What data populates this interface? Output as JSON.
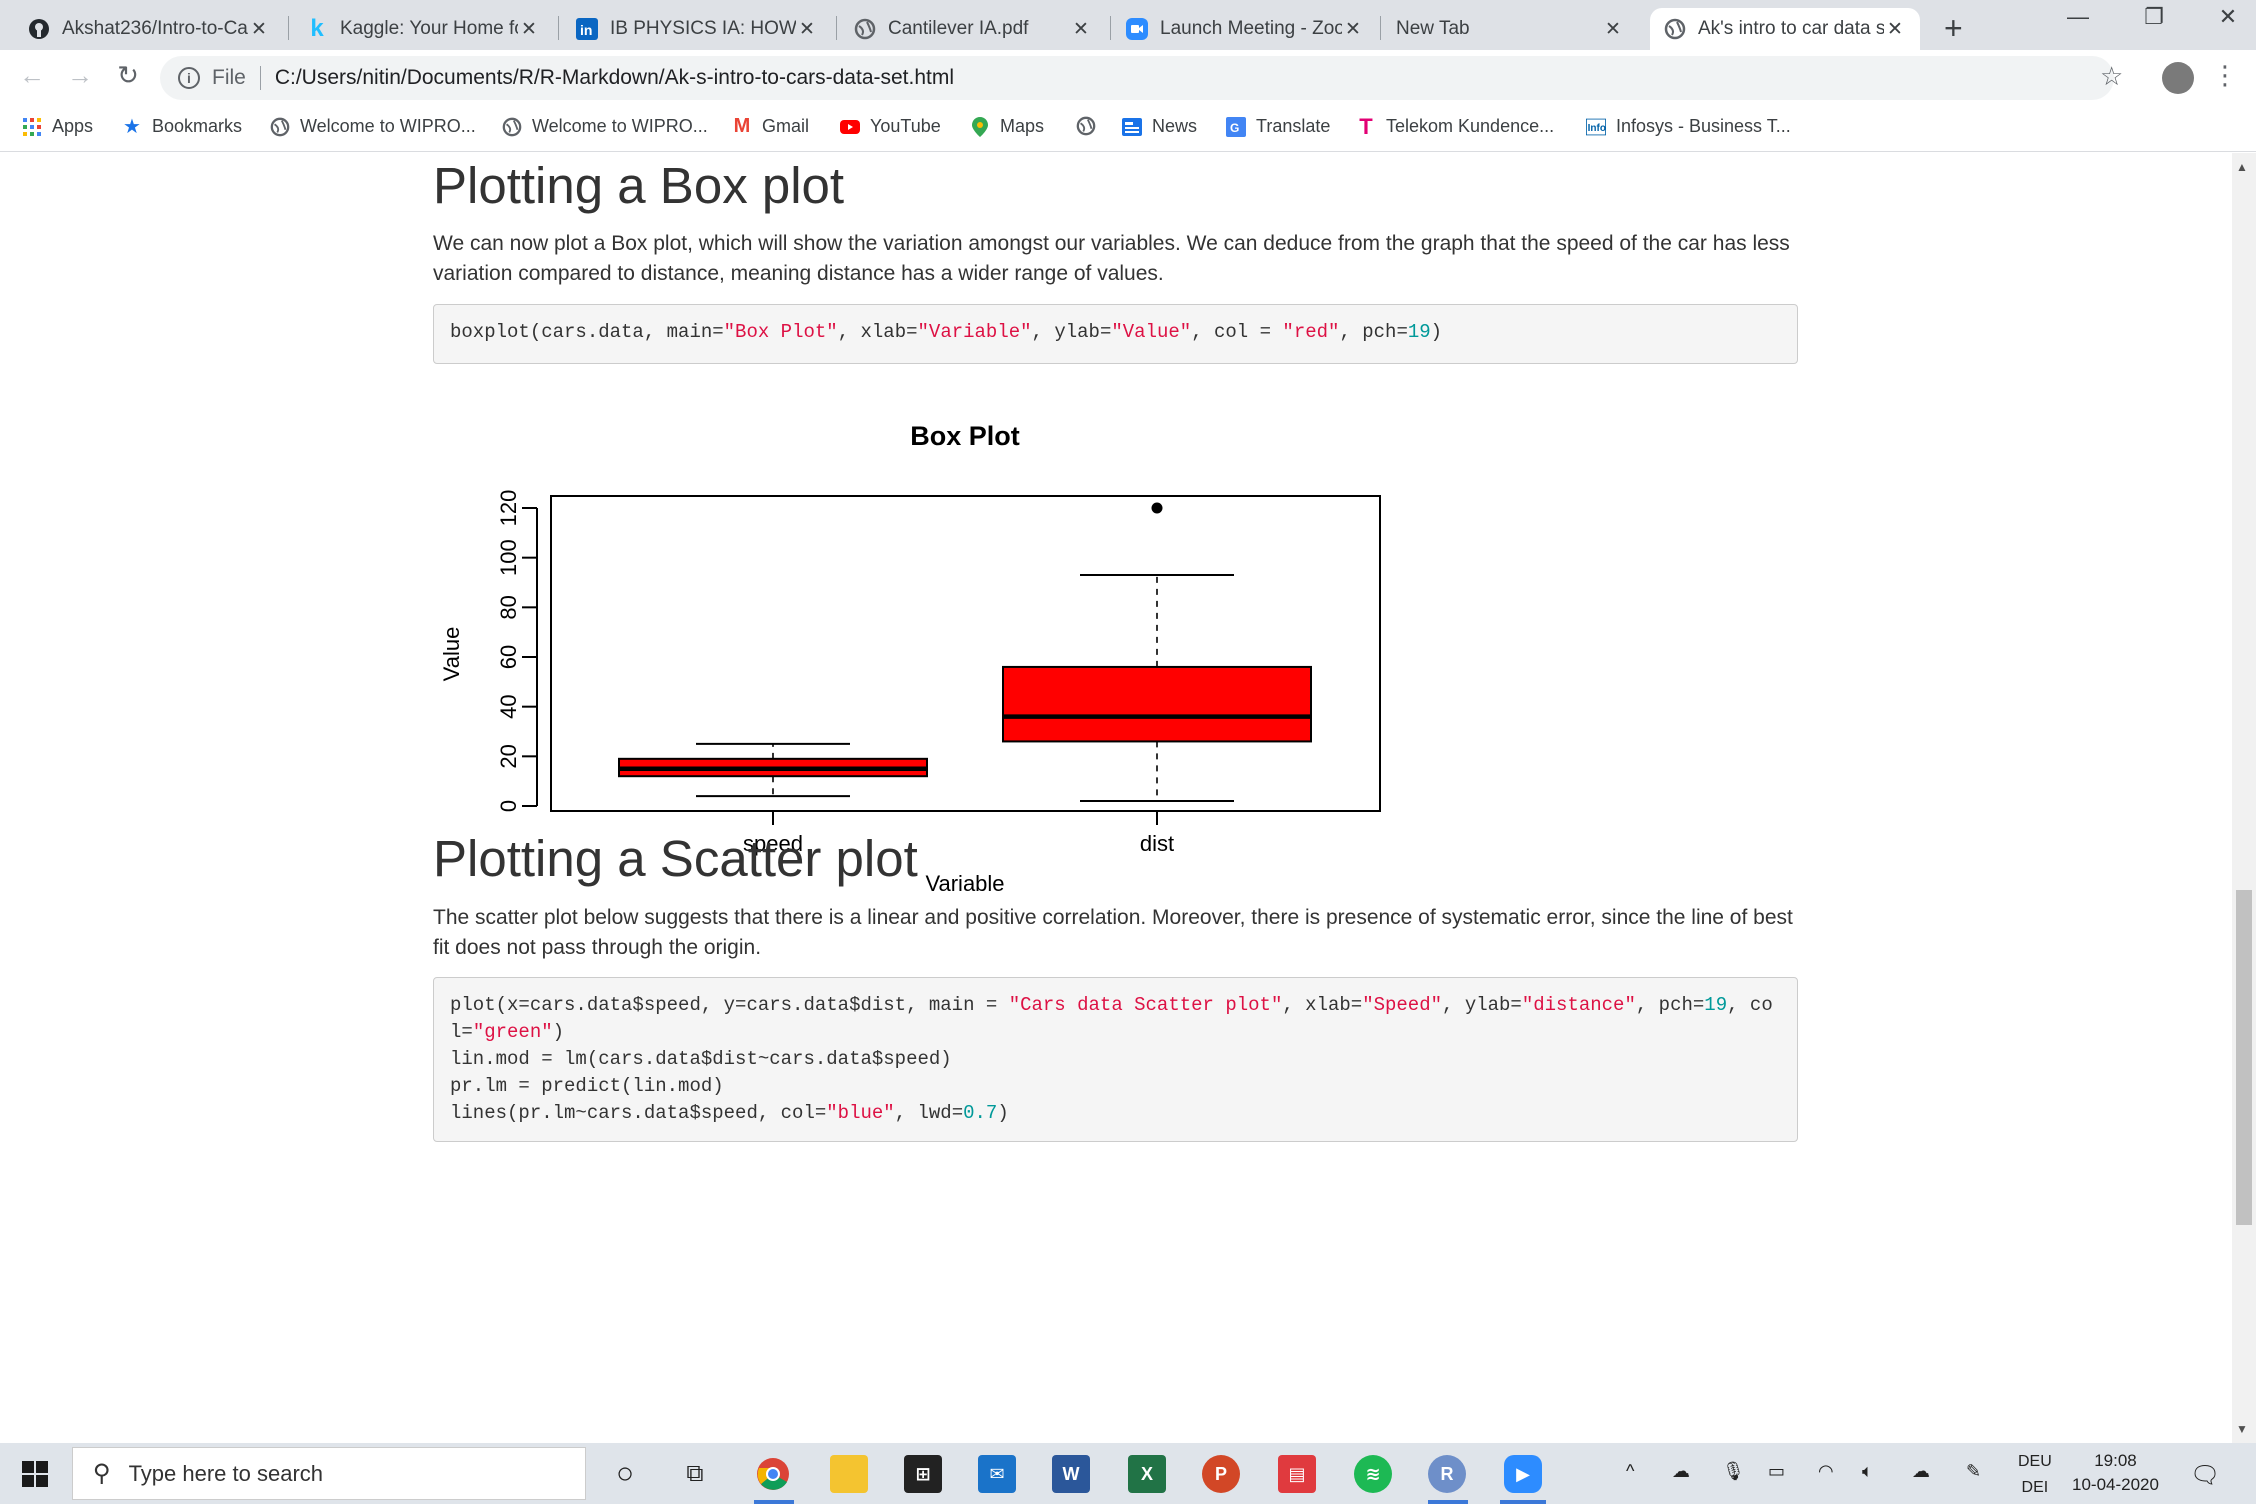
{
  "tabs": [
    {
      "title": "Akshat236/Intro-to-Ca",
      "icon": "github-icon"
    },
    {
      "title": "Kaggle: Your Home fo",
      "icon": "kaggle-icon"
    },
    {
      "title": "IB PHYSICS IA: HOW T",
      "icon": "linkedin-icon"
    },
    {
      "title": "Cantilever IA.pdf",
      "icon": "globe-icon"
    },
    {
      "title": "Launch Meeting - Zoo",
      "icon": "zoom-icon"
    },
    {
      "title": "New Tab",
      "icon": ""
    },
    {
      "title": "Ak's intro to car data s",
      "icon": "globe-icon"
    }
  ],
  "address": {
    "scheme_label": "File",
    "path": "C:/Users/nitin/Documents/R/R-Markdown/Ak-s-intro-to-cars-data-set.html"
  },
  "bookmarks": [
    {
      "label": "Apps"
    },
    {
      "label": "Bookmarks"
    },
    {
      "label": "Welcome to WIPRO..."
    },
    {
      "label": "Welcome to WIPRO..."
    },
    {
      "label": "Gmail"
    },
    {
      "label": "YouTube"
    },
    {
      "label": "Maps"
    },
    {
      "label": ""
    },
    {
      "label": "News"
    },
    {
      "label": "Translate"
    },
    {
      "label": "Telekom Kundence..."
    },
    {
      "label": "Infosys - Business T..."
    }
  ],
  "boxplot_section": {
    "heading": "Plotting a Box plot",
    "paragraph": "We can now plot a Box plot, which will show the variation amongst our variables. We can deduce from the graph that the speed of the car has less variation compared to distance, meaning distance has a wider range of values.",
    "code": {
      "c1": "boxplot(cars.data, main=",
      "s1": "\"Box Plot\"",
      "c2": ", xlab=",
      "s2": "\"Variable\"",
      "c3": ", ylab=",
      "s3": "\"Value\"",
      "c4": ", col = ",
      "s4": "\"red\"",
      "c5": ", pch=",
      "n1": "19",
      "c6": ")"
    }
  },
  "chart_data": {
    "type": "box",
    "title": "Box Plot",
    "xlabel": "Variable",
    "ylabel": "Value",
    "ylim": [
      0,
      120
    ],
    "yticks": [
      "0",
      "20",
      "40",
      "60",
      "80",
      "100",
      "120"
    ],
    "box_color": "#ff0000",
    "categories": [
      "speed",
      "dist"
    ],
    "boxes": [
      {
        "name": "speed",
        "whisker_low": 4,
        "q1": 12,
        "median": 15,
        "q3": 19,
        "whisker_high": 25,
        "outliers": []
      },
      {
        "name": "dist",
        "whisker_low": 2,
        "q1": 26,
        "median": 36,
        "q3": 56,
        "whisker_high": 93,
        "outliers": [
          120
        ]
      }
    ]
  },
  "scatter_section": {
    "heading": "Plotting a Scatter plot",
    "paragraph": "The scatter plot below suggests that there is a linear and positive correlation. Moreover, there is presence of systematic error, since the line of best fit does not pass through the origin.",
    "code": {
      "l1a": "plot(x=cars.data$speed, y=cars.data$dist, main = ",
      "l1s1": "\"Cars data Scatter plot\"",
      "l1b": ", xlab=",
      "l1s2": "\"Speed\"",
      "l1c": ", ylab=",
      "l1s3": "\"distance\"",
      "l1d": ", pch=",
      "l1n": "19",
      "l1e": ", col=",
      "l1s4": "\"green\"",
      "l1f": ")",
      "l2": "lin.mod = lm(cars.data$dist~cars.data$speed)",
      "l3": "pr.lm = predict(lin.mod)",
      "l4a": "lines(pr.lm~cars.data$speed, col=",
      "l4s": "\"blue\"",
      "l4b": ", lwd=",
      "l4n": "0.7",
      "l4c": ")"
    }
  },
  "taskbar": {
    "search_placeholder": "Type here to search",
    "lang_top": "DEU",
    "lang_bottom": "DEI",
    "time": "19:08",
    "date": "10-04-2020"
  }
}
